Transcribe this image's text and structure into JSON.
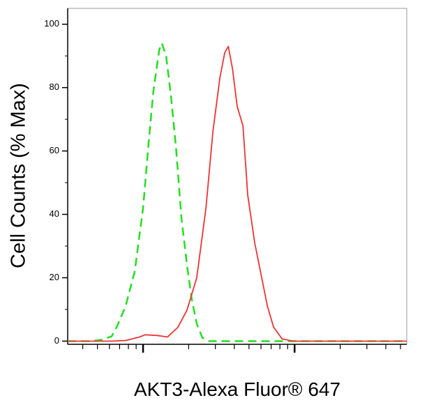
{
  "chart_data": {
    "type": "line",
    "y_label": "Cell Counts (% Max)",
    "x_label": "AKT3-Alexa Fluor® 647",
    "xscale": "log",
    "xlim": [
      0.318,
      55
    ],
    "xticks": [
      1,
      10
    ],
    "xminor_ticks": [
      0.4,
      0.5,
      0.6,
      0.7,
      0.8,
      0.9,
      2,
      3,
      4,
      5,
      6,
      7,
      8,
      9,
      20,
      30,
      40,
      50
    ],
    "ylim": [
      -1,
      105
    ],
    "yticks": [
      0,
      20,
      40,
      60,
      80,
      100
    ],
    "yminor_ticks": [
      10,
      30,
      50,
      70,
      90
    ],
    "series": [
      {
        "color": "#22dd22",
        "dash": true,
        "x": [
          0.318,
          0.451,
          0.53,
          0.621,
          0.675,
          0.767,
          0.881,
          1.0,
          1.09,
          1.17,
          1.28,
          1.33,
          1.42,
          1.53,
          1.65,
          1.79,
          1.95,
          2.1,
          2.26,
          2.46,
          2.74,
          55
        ],
        "values": [
          0,
          0,
          0.4,
          1.5,
          4.8,
          11,
          22,
          42,
          63,
          79,
          92,
          94,
          90,
          77,
          61,
          39,
          24,
          13,
          5.5,
          1.1,
          0,
          0
        ]
      },
      {
        "color": "#ee3333",
        "dash": false,
        "x": [
          0.318,
          0.621,
          0.767,
          0.948,
          1.03,
          1.24,
          1.45,
          1.7,
          1.95,
          2.26,
          2.6,
          2.89,
          3.21,
          3.46,
          3.65,
          3.89,
          4.18,
          4.56,
          4.91,
          5.46,
          6.07,
          6.62,
          7.27,
          8.28,
          9.79,
          55
        ],
        "values": [
          0,
          0,
          0.2,
          1.3,
          2,
          1.8,
          1.3,
          4.4,
          9.8,
          20,
          42,
          66,
          83,
          91,
          93,
          86,
          74,
          68,
          46,
          31,
          20,
          11,
          4.4,
          0.7,
          0,
          0
        ]
      }
    ]
  }
}
